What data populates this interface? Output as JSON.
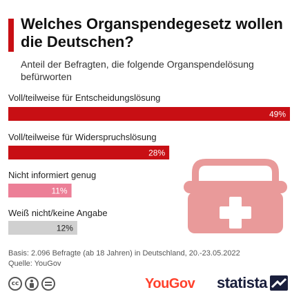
{
  "header": {
    "title": "Welches Organspendegesetz wollen die Deutschen?",
    "subtitle": "Anteil der Befragten, die folgende Organspendelösung befürworten"
  },
  "chart_data": {
    "type": "bar",
    "orientation": "horizontal",
    "categories": [
      "Voll/teilweise für Entscheidungslösung",
      "Voll/teilweise für Widerspruchslösung",
      "Nicht informiert genug",
      "Weiß nicht/keine Angabe"
    ],
    "values": [
      49,
      28,
      11,
      12
    ],
    "value_labels": [
      "49%",
      "28%",
      "11%",
      "12%"
    ],
    "colors": [
      "#c80f14",
      "#c80f14",
      "#ec7f97",
      "#d0d0d0"
    ],
    "unit": "%",
    "xlim": [
      0,
      49
    ],
    "grid": false,
    "legend": "none"
  },
  "illustration": {
    "icon": "medical-cooler-icon",
    "color": "#e99a9a"
  },
  "footer": {
    "basis": "Basis: 2.096 Befragte (ab 18 Jahren) in Deutschland, 20.-23.05.2022",
    "source": "Quelle: YouGov",
    "license_icons": [
      "cc-icon",
      "by-icon",
      "nd-icon"
    ],
    "brand_yougov": "YouGov",
    "brand_statista": "statista"
  },
  "colors": {
    "accent": "#c80f14",
    "yougov": "#ff412c",
    "statista": "#1a1f3c"
  }
}
